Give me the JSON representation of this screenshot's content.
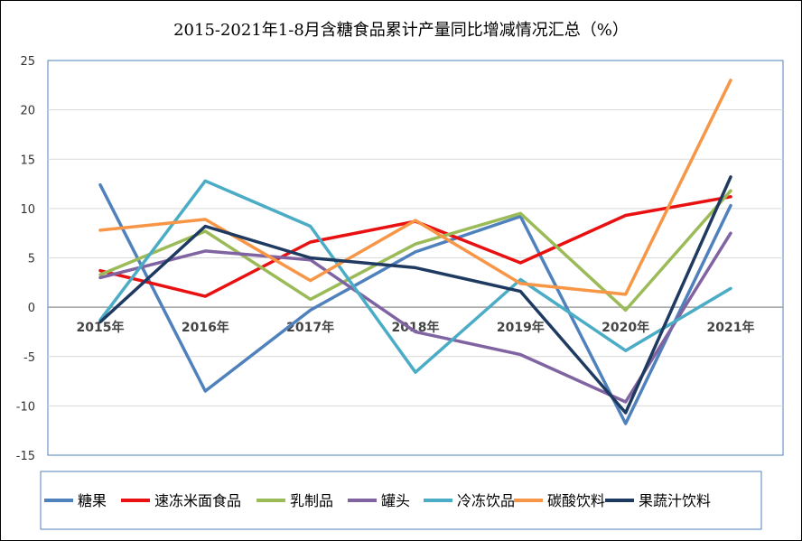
{
  "chart_data": {
    "type": "line",
    "title": "2015-2021年1-8月含糖食品累计产量同比增减情况汇总（%）",
    "categories": [
      "2015年",
      "2016年",
      "2017年",
      "2018年",
      "2019年",
      "2020年",
      "2021年"
    ],
    "ylim": [
      -15,
      25
    ],
    "yticks": [
      "25",
      "20",
      "15",
      "10",
      "5",
      "0",
      "-5",
      "-10",
      "-15"
    ],
    "grid": true,
    "legend_position": "bottom",
    "series": [
      {
        "name": "糖果",
        "color": "#4F81BD",
        "values": [
          12.4,
          -8.5,
          -0.3,
          5.6,
          9.2,
          -11.8,
          10.3
        ]
      },
      {
        "name": "速冻米面食品",
        "color": "#E81010",
        "values": [
          3.7,
          1.1,
          6.6,
          8.7,
          4.5,
          9.3,
          11.2
        ]
      },
      {
        "name": "乳制品",
        "color": "#9BBB59",
        "values": [
          3.3,
          7.7,
          0.8,
          6.4,
          9.5,
          -0.3,
          11.8
        ]
      },
      {
        "name": "罐头",
        "color": "#8064A2",
        "values": [
          3.0,
          5.7,
          4.8,
          -2.5,
          -4.8,
          -9.6,
          7.5
        ]
      },
      {
        "name": "冷冻饮品",
        "color": "#4BACC6",
        "values": [
          -1.3,
          12.8,
          8.2,
          -6.6,
          2.8,
          -4.4,
          1.9
        ]
      },
      {
        "name": "碳酸饮料",
        "color": "#F79646",
        "values": [
          7.8,
          8.9,
          2.7,
          8.8,
          2.4,
          1.3,
          23.0
        ]
      },
      {
        "name": "果蔬汁饮料",
        "color": "#1F3A60",
        "values": [
          -1.5,
          8.2,
          5.0,
          4.0,
          1.6,
          -10.7,
          13.2
        ]
      }
    ]
  }
}
